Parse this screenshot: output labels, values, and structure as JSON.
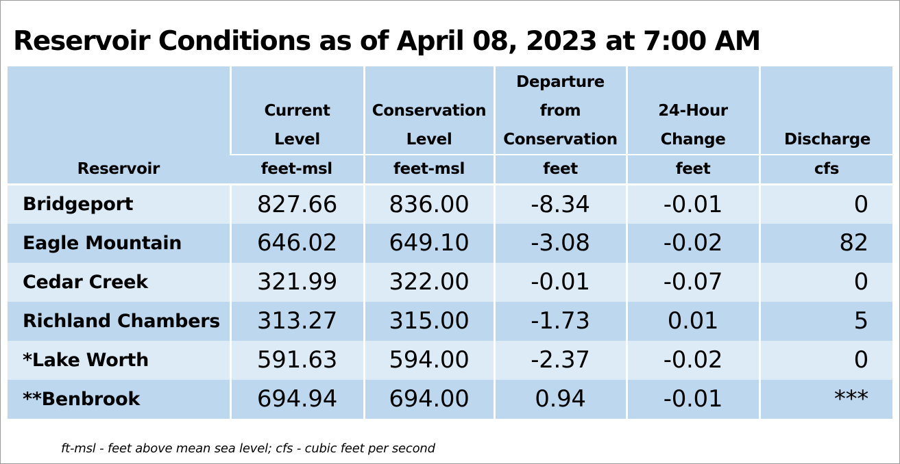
{
  "title": "Reservoir Conditions as of April 08, 2023 at 7:00 AM",
  "columns": [
    {
      "label_lines": [
        "",
        "",
        "",
        "Reservoir"
      ],
      "unit": ""
    },
    {
      "label_lines": [
        "",
        "Current",
        "Level"
      ],
      "unit": "feet-msl"
    },
    {
      "label_lines": [
        "",
        "Conservation",
        "Level"
      ],
      "unit": "feet-msl"
    },
    {
      "label_lines": [
        "Departure",
        "from",
        "Conservation"
      ],
      "unit": "feet"
    },
    {
      "label_lines": [
        "",
        "24-Hour",
        "Change"
      ],
      "unit": "feet"
    },
    {
      "label_lines": [
        "",
        "",
        "Discharge"
      ],
      "unit": "cfs"
    }
  ],
  "rows": [
    {
      "reservoir": "Bridgeport",
      "current": "827.66",
      "conservation": "836.00",
      "departure": "-8.34",
      "change": "-0.01",
      "discharge": "0"
    },
    {
      "reservoir": "Eagle Mountain",
      "current": "646.02",
      "conservation": "649.10",
      "departure": "-3.08",
      "change": "-0.02",
      "discharge": "82"
    },
    {
      "reservoir": "Cedar Creek",
      "current": "321.99",
      "conservation": "322.00",
      "departure": "-0.01",
      "change": "-0.07",
      "discharge": "0"
    },
    {
      "reservoir": "Richland Chambers",
      "current": "313.27",
      "conservation": "315.00",
      "departure": "-1.73",
      "change": "0.01",
      "discharge": "5"
    },
    {
      "reservoir": "*Lake Worth",
      "current": "591.63",
      "conservation": "594.00",
      "departure": "-2.37",
      "change": "-0.02",
      "discharge": "0"
    },
    {
      "reservoir": "**Benbrook",
      "current": "694.94",
      "conservation": "694.00",
      "departure": "0.94",
      "change": "-0.01",
      "discharge": "***"
    }
  ],
  "footnote": "ft-msl - feet above mean sea level; cfs - cubic feet per second",
  "colors": {
    "header_bg": "#bdd7ee",
    "row_light": "#ddebf7",
    "row_dark": "#bdd7ee"
  }
}
